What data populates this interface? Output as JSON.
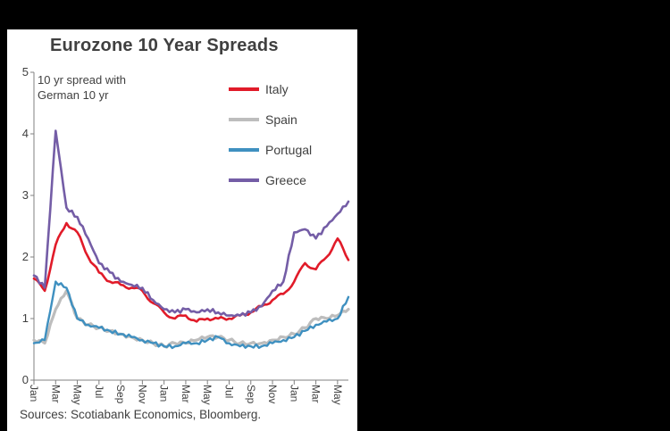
{
  "chart_data": {
    "type": "line",
    "title": "Eurozone 10 Year Spreads",
    "annotation_lines": [
      "10 yr spread with",
      "German 10 yr"
    ],
    "ylim": [
      0,
      5
    ],
    "y_ticks": [
      "0",
      "1",
      "2",
      "3",
      "4",
      "5"
    ],
    "x_tick_labels": [
      "Jan",
      "Mar",
      "May",
      "Jul",
      "Sep",
      "Nov",
      "Jan",
      "Mar",
      "May",
      "Jul",
      "Sep",
      "Nov",
      "Jan",
      "Mar",
      "May"
    ],
    "x_tick_every": 2,
    "grid": false,
    "legend_position": "top-right",
    "axis_color": "#808080",
    "text_color": "#404040",
    "background_color": "#000000",
    "panel_color": "#ffffff",
    "series": [
      {
        "name": "Italy",
        "color": "#e11b29",
        "width": 2.6,
        "values": [
          1.65,
          1.45,
          2.2,
          2.55,
          2.4,
          2.0,
          1.75,
          1.6,
          1.55,
          1.5,
          1.45,
          1.25,
          1.1,
          1.0,
          1.05,
          0.95,
          1.0,
          1.0,
          1.0,
          1.05,
          1.1,
          1.2,
          1.3,
          1.4,
          1.6,
          1.9,
          1.8,
          2.0,
          2.3,
          1.95
        ]
      },
      {
        "name": "Spain",
        "color": "#bdbdbd",
        "width": 3.2,
        "values": [
          0.65,
          0.6,
          1.15,
          1.45,
          1.0,
          0.9,
          0.85,
          0.8,
          0.75,
          0.7,
          0.65,
          0.6,
          0.55,
          0.6,
          0.6,
          0.65,
          0.7,
          0.7,
          0.65,
          0.6,
          0.6,
          0.6,
          0.65,
          0.7,
          0.75,
          0.85,
          1.0,
          1.0,
          1.05,
          1.15
        ]
      },
      {
        "name": "Portugal",
        "color": "#3f90c0",
        "width": 2.4,
        "values": [
          0.6,
          0.65,
          1.6,
          1.5,
          1.0,
          0.9,
          0.85,
          0.8,
          0.75,
          0.7,
          0.65,
          0.6,
          0.55,
          0.55,
          0.6,
          0.6,
          0.65,
          0.7,
          0.6,
          0.55,
          0.55,
          0.55,
          0.6,
          0.65,
          0.7,
          0.8,
          0.9,
          0.95,
          1.0,
          1.35
        ]
      },
      {
        "name": "Greece",
        "color": "#745da6",
        "width": 2.6,
        "values": [
          1.7,
          1.5,
          4.05,
          2.8,
          2.65,
          2.3,
          1.9,
          1.75,
          1.6,
          1.55,
          1.5,
          1.3,
          1.15,
          1.1,
          1.15,
          1.1,
          1.15,
          1.1,
          1.05,
          1.05,
          1.1,
          1.2,
          1.45,
          1.6,
          2.4,
          2.45,
          2.3,
          2.5,
          2.7,
          2.9
        ]
      }
    ]
  },
  "footer": {
    "sources": "Sources: Scotiabank Economics, Bloomberg."
  }
}
